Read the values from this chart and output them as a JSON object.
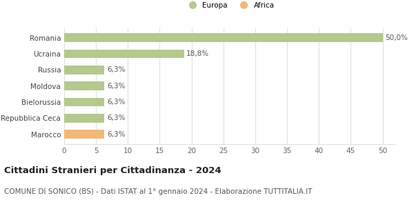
{
  "categories": [
    "Romania",
    "Ucraina",
    "Russia",
    "Moldova",
    "Bielorussia",
    "Repubblica Ceca",
    "Marocco"
  ],
  "values": [
    50.0,
    18.8,
    6.3,
    6.3,
    6.3,
    6.3,
    6.3
  ],
  "colors": [
    "#b5c98e",
    "#b5c98e",
    "#b5c98e",
    "#b5c98e",
    "#b5c98e",
    "#b5c98e",
    "#f0b97a"
  ],
  "labels": [
    "50,0%",
    "18,8%",
    "6,3%",
    "6,3%",
    "6,3%",
    "6,3%",
    "6,3%"
  ],
  "legend": [
    {
      "label": "Europa",
      "color": "#b5c98e"
    },
    {
      "label": "Africa",
      "color": "#f0b97a"
    }
  ],
  "xlim": [
    0,
    52
  ],
  "xticks": [
    0,
    5,
    10,
    15,
    20,
    25,
    30,
    35,
    40,
    45,
    50
  ],
  "title": "Cittadini Stranieri per Cittadinanza - 2024",
  "subtitle": "COMUNE DI SONICO (BS) - Dati ISTAT al 1° gennaio 2024 - Elaborazione TUTTITALIA.IT",
  "bg_color": "#ffffff",
  "grid_color": "#e0e0e0",
  "title_fontsize": 9.5,
  "subtitle_fontsize": 7.5,
  "label_fontsize": 7.5,
  "tick_fontsize": 7.5
}
